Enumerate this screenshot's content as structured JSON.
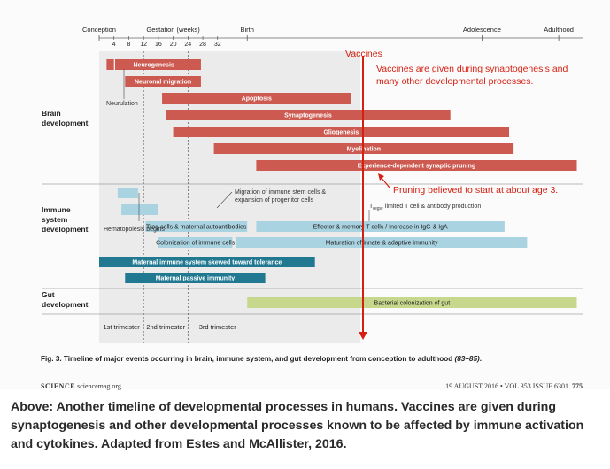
{
  "chart_data": {
    "type": "timeline",
    "axis": {
      "top_labels": [
        {
          "label": "Conception",
          "week": 0
        },
        {
          "label": "Gestation (weeks)",
          "week": 20
        },
        {
          "label": "Birth",
          "week": 40
        },
        {
          "label": "Adolescence",
          "week": 92
        },
        {
          "label": "Adulthood",
          "week": 109
        }
      ],
      "week_ticks": [
        "4",
        "8",
        "12",
        "16",
        "20",
        "24",
        "28",
        "32"
      ]
    },
    "rows": [
      {
        "label": "Brain\ndevelopment"
      },
      {
        "label": "Immune\nsystem\ndevelopment"
      },
      {
        "label": "Gut\ndevelopment"
      }
    ],
    "bars": [
      {
        "label": "Neurogenesis",
        "group": "brain",
        "color": "#cd5a50",
        "start": 2,
        "end": 27.5
      },
      {
        "label": "Neuronal migration",
        "group": "brain",
        "color": "#cd5a50",
        "start": 7,
        "end": 27.5
      },
      {
        "label": "Apoptosis",
        "group": "brain",
        "color": "#cd5a50",
        "start": 17,
        "end": 63
      },
      {
        "label": "Synaptogenesis",
        "group": "brain",
        "color": "#cd5a50",
        "start": 18,
        "end": 85
      },
      {
        "label": "Gliogenesis",
        "group": "brain",
        "color": "#cd5a50",
        "start": 20,
        "end": 98
      },
      {
        "label": "Myelination",
        "group": "brain",
        "color": "#cd5a50",
        "start": 31,
        "end": 99
      },
      {
        "label": "Experience-dependent synaptic pruning",
        "group": "brain",
        "color": "#cd5a50",
        "start": 42,
        "end": 113
      },
      {
        "label": "",
        "group": "immune",
        "color": "#a9d3e1",
        "start": 5,
        "end": 10.5
      },
      {
        "label": "",
        "group": "immune",
        "color": "#a9d3e1",
        "start": 6,
        "end": 16
      },
      {
        "label": "Treg cells & maternal autoantibodies",
        "group": "immune",
        "color": "#a9d3e1",
        "start": 12.5,
        "end": 40
      },
      {
        "label": "Effector & memory T cells / Increase in IgG & IgA",
        "group": "immune",
        "color": "#a9d3e1",
        "start": 42,
        "end": 97
      },
      {
        "label": "Colonization of immune cells",
        "group": "immune",
        "color": "#a9d3e1",
        "start": 16,
        "end": 36
      },
      {
        "label": "Maturation of innate & adaptive immunity",
        "group": "immune",
        "color": "#a9d3e1",
        "start": 37,
        "end": 102
      },
      {
        "label": "Maternal immune system skewed toward tolerance",
        "group": "immune",
        "color": "#217991",
        "start": 0,
        "end": 55
      },
      {
        "label": "Maternal passive immunity",
        "group": "immune",
        "color": "#217991",
        "start": 7,
        "end": 44
      },
      {
        "label": "Bacterial colonization of gut",
        "group": "gut",
        "color": "#c7d88d",
        "start": 40,
        "end": 113
      }
    ],
    "annotations": [
      {
        "text": "Neurulation"
      },
      {
        "text": "Migration of immune stem cells & expansion of progenitor cells"
      },
      {
        "text": "Hematopoiesis begins"
      },
      {
        "text": "Tregs, limited T cell & antibody production"
      }
    ],
    "trimesters": [
      "1st trimester",
      "2nd trimester",
      "3rd trimester"
    ],
    "overlay": {
      "vaccines_label": "Vaccines",
      "vaccines_note": "Vaccines are given during synaptogenesis and many other developmental processes.",
      "pruning_note": "Pruning believed to start at about age 3."
    }
  },
  "caption": {
    "bold": "Fig. 3. Timeline of major events occurring in brain, immune system, and gut development from conception to adulthood",
    "refs": "(83–85)",
    "end": "."
  },
  "footer": {
    "journal": "SCIENCE",
    "site": "sciencemag.org",
    "issue": "19 AUGUST 2016 • VOL 353 ISSUE 6301",
    "page": "775"
  },
  "description": "Above: Another timeline of developmental processes in humans. Vaccines are given during synaptogenesis and other developmental processes known to be affected by immune activation and cytokines. Adapted from Estes and McAllister, 2016."
}
